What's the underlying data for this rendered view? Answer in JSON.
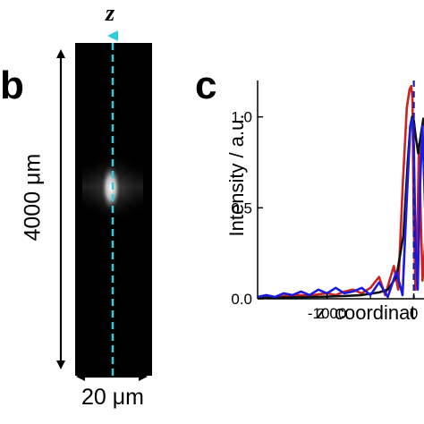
{
  "panel_b": {
    "letter": "b",
    "axis_label": "z",
    "height_label": "4000 μm",
    "width_label": "20 μm",
    "colors": {
      "axis_dash": "#33ccdd",
      "background": "#000000"
    }
  },
  "panel_c": {
    "letter": "c"
  },
  "chart_data": {
    "type": "line",
    "title": "",
    "xlabel_var": "z",
    "xlabel_text": "coordinat",
    "ylabel": "Intensity / a.u.",
    "xlim": [
      -1800,
      200
    ],
    "ylim": [
      0,
      1.2
    ],
    "xticks": [
      -1000,
      0
    ],
    "xtick_labels": [
      "-1000",
      "0"
    ],
    "yticks": [
      0.0,
      0.5,
      1.0
    ],
    "ytick_labels": [
      "0.0",
      "0.5",
      "1.0"
    ],
    "vline": {
      "x": 0,
      "style": "dashed",
      "color": "#1a1aa8"
    },
    "series": [
      {
        "color": "#cc2222",
        "x": [
          -1800,
          -1700,
          -1600,
          -1500,
          -1400,
          -1300,
          -1200,
          -1100,
          -1000,
          -900,
          -800,
          -700,
          -600,
          -500,
          -400,
          -330,
          -280,
          -230,
          -180,
          -130,
          -80,
          -50,
          -30,
          -15,
          0,
          20,
          40,
          60,
          80,
          100,
          130
        ],
        "y": [
          0.01,
          0.012,
          0.01,
          0.015,
          0.018,
          0.02,
          0.015,
          0.025,
          0.03,
          0.02,
          0.04,
          0.05,
          0.03,
          0.06,
          0.12,
          0.02,
          0.1,
          0.18,
          0.05,
          0.6,
          1.05,
          1.15,
          1.17,
          1.1,
          0.4,
          0.05,
          0.35,
          0.85,
          0.45,
          0.1,
          0.3
        ]
      },
      {
        "color": "#111111",
        "x": [
          -1800,
          -1600,
          -1400,
          -1200,
          -1000,
          -800,
          -600,
          -400,
          -300,
          -200,
          -120,
          -70,
          -40,
          -20,
          0,
          20,
          50,
          80,
          110,
          140,
          170,
          200
        ],
        "y": [
          0.005,
          0.006,
          0.008,
          0.01,
          0.012,
          0.015,
          0.02,
          0.035,
          0.05,
          0.12,
          0.35,
          0.75,
          0.95,
          1.0,
          0.98,
          0.9,
          0.8,
          0.9,
          0.99,
          0.92,
          0.82,
          0.88
        ]
      },
      {
        "color": "#1a1ae0",
        "x": [
          -1800,
          -1700,
          -1600,
          -1500,
          -1400,
          -1300,
          -1200,
          -1100,
          -1000,
          -900,
          -800,
          -700,
          -600,
          -500,
          -400,
          -300,
          -200,
          -130,
          -80,
          -40,
          -15,
          0,
          20,
          45,
          70,
          100,
          130,
          160,
          200
        ],
        "y": [
          0.01,
          0.02,
          0.01,
          0.03,
          0.02,
          0.04,
          0.02,
          0.05,
          0.03,
          0.06,
          0.03,
          0.04,
          0.06,
          0.02,
          0.09,
          0.01,
          0.15,
          0.02,
          0.55,
          0.95,
          0.99,
          0.85,
          0.3,
          0.05,
          0.6,
          0.95,
          0.5,
          0.2,
          0.9
        ]
      }
    ]
  }
}
